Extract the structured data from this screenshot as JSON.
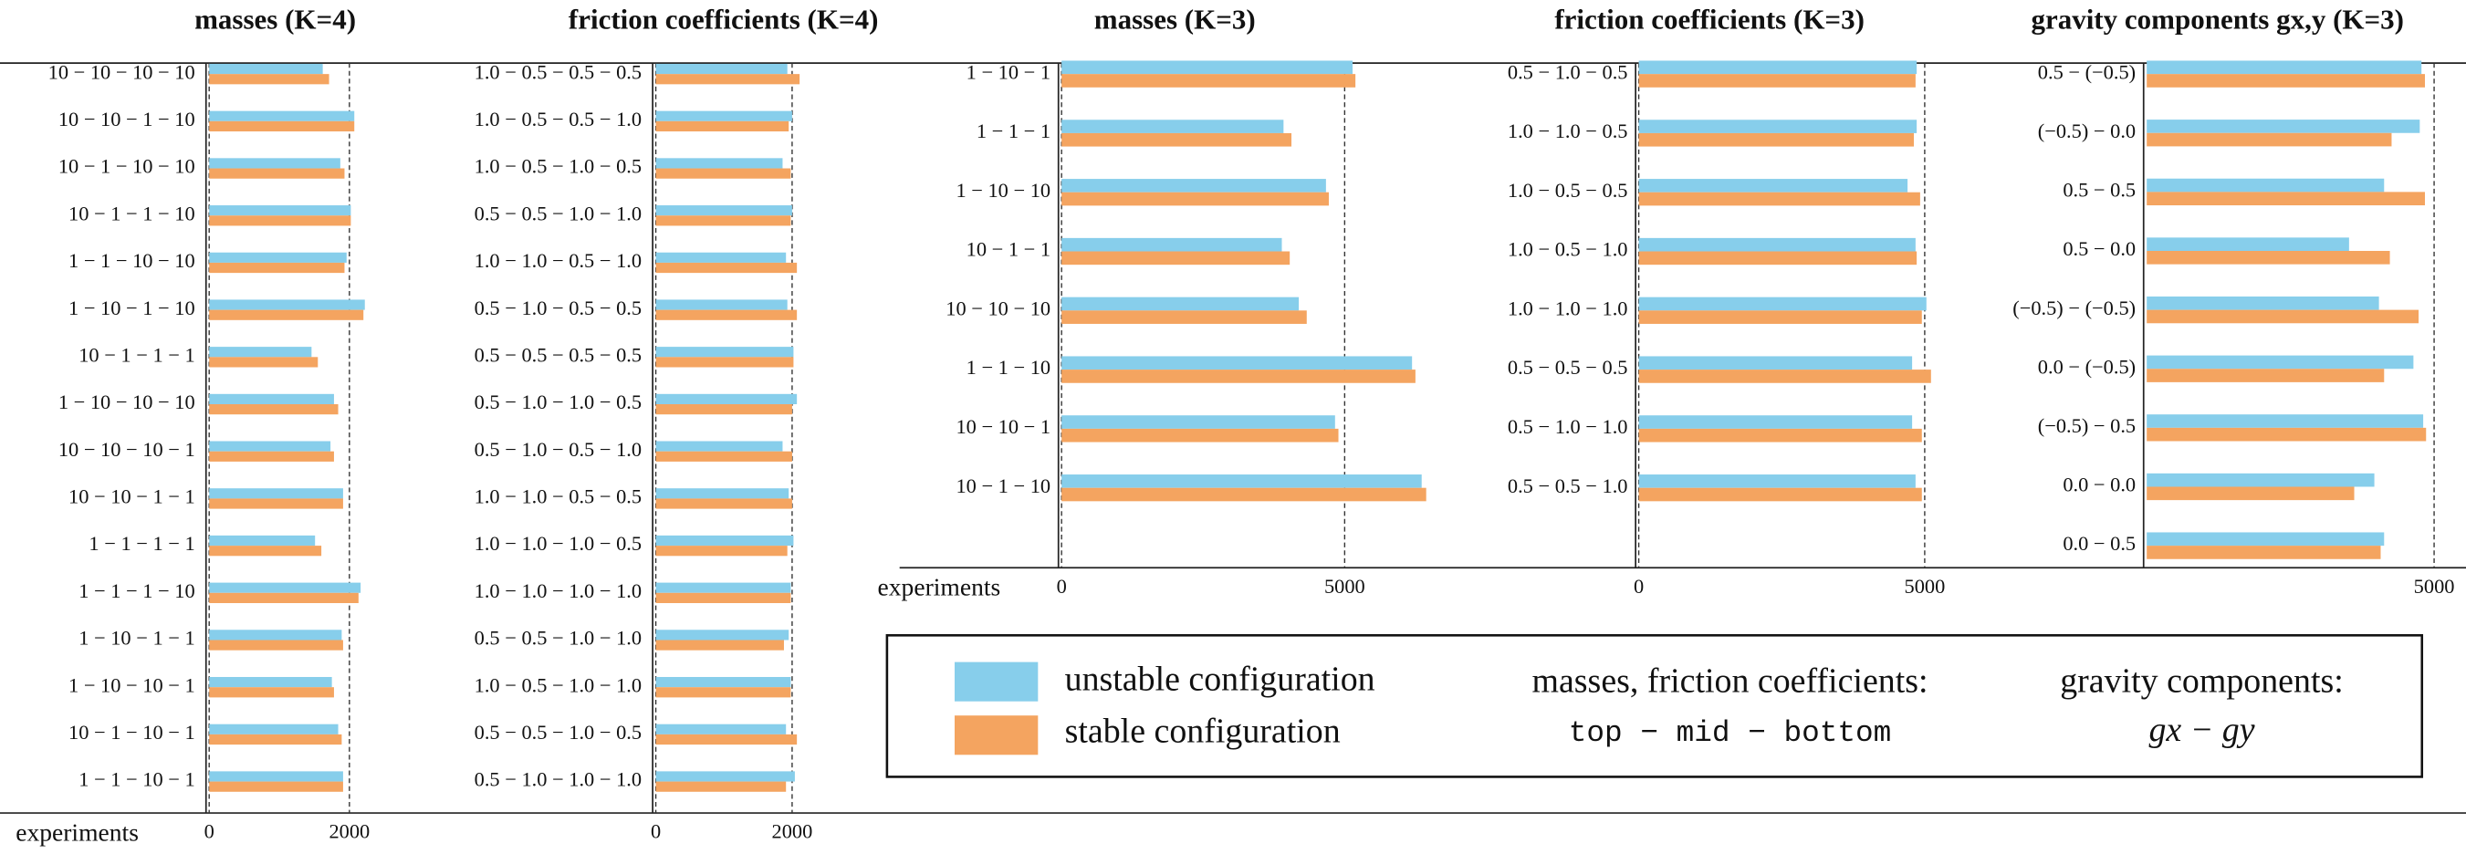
{
  "chart_data": [
    {
      "type": "bar",
      "orientation": "horizontal",
      "title": "masses (K=4)",
      "x_label": "experiments",
      "categories": [
        "10 − 10 − 10 − 10",
        "10 − 10 − 1 − 10",
        "10 − 1 − 10 − 10",
        "10 − 1 − 1 − 10",
        "1 − 1 − 10 − 10",
        "1 − 10 − 1 − 10",
        "10 − 1 − 1 − 1",
        "1 − 10 − 10 − 10",
        "10 − 10 − 10 − 1",
        "10 − 10 − 1 − 1",
        "1 − 1 − 1 − 1",
        "1 − 1 − 1 − 10",
        "1 − 10 − 1 − 1",
        "1 − 10 − 10 − 1",
        "10 − 1 − 10 − 1",
        "1 − 1 − 10 − 1"
      ],
      "series": [
        {
          "name": "unstable configuration",
          "color": "#87ceeb",
          "values": [
            1620,
            2070,
            1870,
            2020,
            1960,
            2220,
            1460,
            1780,
            1730,
            1910,
            1510,
            2160,
            1890,
            1750,
            1840,
            1910
          ]
        },
        {
          "name": "stable configuration",
          "color": "#f4a460",
          "values": [
            1710,
            2070,
            1930,
            2020,
            1930,
            2200,
            1550,
            1840,
            1780,
            1910,
            1600,
            2130,
            1910,
            1780,
            1890,
            1910
          ]
        }
      ],
      "xlim": [
        0,
        2400
      ],
      "xticks": [
        0,
        2000
      ],
      "grid": true
    },
    {
      "type": "bar",
      "orientation": "horizontal",
      "title": "friction coefficients (K=4)",
      "categories": [
        "1.0 − 0.5 − 0.5 − 0.5",
        "1.0 − 0.5 − 0.5 − 1.0",
        "1.0 − 0.5 − 1.0 − 0.5",
        "0.5 − 0.5 − 1.0 − 1.0",
        "1.0 − 1.0 − 0.5 − 1.0",
        "0.5 − 1.0 − 0.5 − 0.5",
        "0.5 − 0.5 − 0.5 − 0.5",
        "0.5 − 1.0 − 1.0 − 0.5",
        "0.5 − 1.0 − 0.5 − 1.0",
        "1.0 − 1.0 − 0.5 − 0.5",
        "1.0 − 1.0 − 1.0 − 0.5",
        "1.0 − 1.0 − 1.0 − 1.0",
        "0.5 − 0.5 − 1.0 − 1.0",
        "1.0 − 0.5 − 1.0 − 1.0",
        "0.5 − 0.5 − 1.0 − 0.5",
        "0.5 − 1.0 − 1.0 − 1.0"
      ],
      "series": [
        {
          "name": "unstable configuration",
          "color": "#87ceeb",
          "values": [
            1930,
            2000,
            1860,
            2000,
            1910,
            1930,
            2020,
            2070,
            1860,
            1950,
            2020,
            1980,
            1950,
            1980,
            1910,
            2040
          ]
        },
        {
          "name": "stable configuration",
          "color": "#f4a460",
          "values": [
            2110,
            1950,
            1980,
            1980,
            2070,
            2070,
            2020,
            2000,
            2000,
            2000,
            1930,
            1980,
            1880,
            1980,
            2070,
            1910
          ]
        }
      ],
      "xlim": [
        0,
        2400
      ],
      "xticks": [
        0,
        2000
      ],
      "grid": true
    },
    {
      "type": "bar",
      "orientation": "horizontal",
      "title": "masses (K=3)",
      "x_label": "experiments",
      "categories": [
        "1 − 10 − 1",
        "1 − 1 − 1",
        "1 − 10 − 10",
        "10 − 1 − 1",
        "10 − 10 − 10",
        "1 − 1 − 10",
        "10 − 10 − 1",
        "10 − 1 − 10"
      ],
      "series": [
        {
          "name": "unstable configuration",
          "color": "#87ceeb",
          "values": [
            5140,
            3920,
            4670,
            3890,
            4190,
            6190,
            4830,
            6360
          ]
        },
        {
          "name": "stable configuration",
          "color": "#f4a460",
          "values": [
            5190,
            4060,
            4720,
            4030,
            4330,
            6250,
            4890,
            6440
          ]
        }
      ],
      "xlim": [
        0,
        7000
      ],
      "xticks": [
        0,
        5000
      ],
      "grid": true
    },
    {
      "type": "bar",
      "orientation": "horizontal",
      "title": "friction coefficients (K=3)",
      "categories": [
        "0.5 − 1.0 − 0.5",
        "1.0 − 1.0 − 0.5",
        "1.0 − 0.5 − 0.5",
        "1.0 − 0.5 − 1.0",
        "1.0 − 1.0 − 1.0",
        "0.5 − 0.5 − 0.5",
        "0.5 − 1.0 − 1.0",
        "0.5 − 0.5 − 1.0"
      ],
      "series": [
        {
          "name": "unstable configuration",
          "color": "#87ceeb",
          "values": [
            4860,
            4860,
            4700,
            4840,
            5030,
            4780,
            4780,
            4840
          ]
        },
        {
          "name": "stable configuration",
          "color": "#f4a460",
          "values": [
            4840,
            4810,
            4920,
            4860,
            4950,
            5110,
            4950,
            4950
          ]
        }
      ],
      "xlim": [
        0,
        5500
      ],
      "xticks": [
        0,
        5000
      ],
      "grid": true
    },
    {
      "type": "bar",
      "orientation": "horizontal",
      "title": "gravity components gx,y (K=3)",
      "categories": [
        "0.5 − (−0.5)",
        "(−0.5) − 0.0",
        "0.5 − 0.5",
        "0.5 − 0.0",
        "(−0.5) − (−0.5)",
        "0.0 − (−0.5)",
        "(−0.5) − 0.5",
        "0.0 − 0.0",
        "0.0 − 0.5"
      ],
      "series": [
        {
          "name": "unstable configuration",
          "color": "#87ceeb",
          "values": [
            4780,
            4750,
            4130,
            3520,
            4040,
            4640,
            4810,
            3960,
            4130
          ]
        },
        {
          "name": "stable configuration",
          "color": "#f4a460",
          "values": [
            4840,
            4260,
            4840,
            4230,
            4730,
            4130,
            4860,
            3610,
            4070
          ]
        }
      ],
      "xlim": [
        0,
        5500
      ],
      "xticks": [
        5000
      ],
      "grid": true
    }
  ],
  "legend": {
    "notes": [
      {
        "heading": "masses, friction coefficients:",
        "text": "top − mid − bottom"
      },
      {
        "heading": "gravity components:",
        "text": "gx − gy"
      }
    ]
  }
}
